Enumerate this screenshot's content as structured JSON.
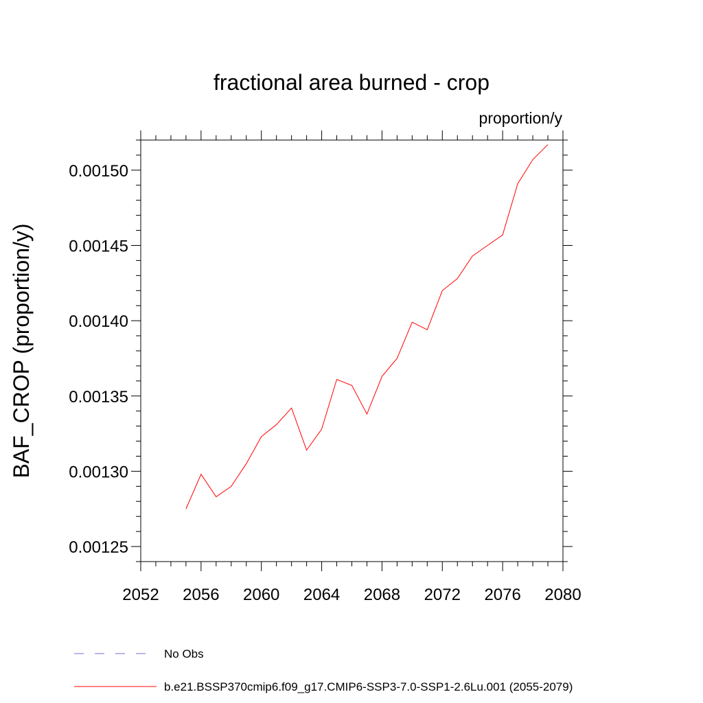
{
  "colors": {
    "model_line": "#ff0000",
    "obs_line": "#7b68c8",
    "axis": "#000000"
  },
  "chart_data": {
    "type": "line",
    "title": "fractional area burned - crop",
    "units": "proportion/y",
    "ylabel": "BAF_CROP  (proportion/y)",
    "xlabel": "",
    "xlim": [
      2052,
      2080
    ],
    "ylim": [
      0.00124,
      0.00152
    ],
    "x_ticks": [
      2052,
      2056,
      2060,
      2064,
      2068,
      2072,
      2076,
      2080
    ],
    "x_tick_labels": [
      "2052",
      "2056",
      "2060",
      "2064",
      "2068",
      "2072",
      "2076",
      "2080"
    ],
    "y_ticks": [
      0.00125,
      0.0013,
      0.00135,
      0.0014,
      0.00145,
      0.0015
    ],
    "y_tick_labels": [
      "0.00125",
      "0.00130",
      "0.00135",
      "0.00140",
      "0.00145",
      "0.00150"
    ],
    "grid": false,
    "legend_position": "bottom",
    "series": [
      {
        "name": "b.e21.BSSP370cmip6.f09_g17.CMIP6-SSP3-7.0-SSP1-2.6Lu.001 (2055-2079)",
        "color": "#ff0000",
        "style": "solid",
        "x": [
          2055,
          2056,
          2057,
          2058,
          2059,
          2060,
          2061,
          2062,
          2063,
          2064,
          2065,
          2066,
          2067,
          2068,
          2069,
          2070,
          2071,
          2072,
          2073,
          2074,
          2075,
          2076,
          2077,
          2078,
          2079
        ],
        "y": [
          0.001275,
          0.001298,
          0.001283,
          0.00129,
          0.001305,
          0.001323,
          0.001331,
          0.001342,
          0.001314,
          0.001328,
          0.001361,
          0.001357,
          0.001338,
          0.001363,
          0.001375,
          0.001399,
          0.001394,
          0.00142,
          0.001428,
          0.001443,
          0.00145,
          0.001457,
          0.001491,
          0.001507,
          0.001517
        ]
      },
      {
        "name": "No Obs",
        "color": "#7b68c8",
        "style": "dashed",
        "x": [],
        "y": []
      }
    ]
  }
}
